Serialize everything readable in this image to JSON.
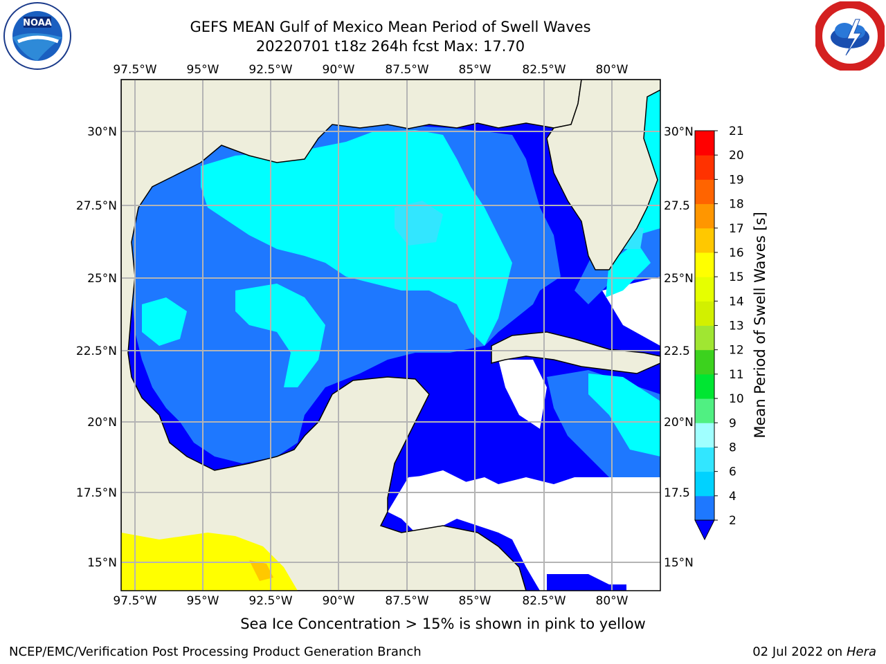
{
  "title_line1": "GEFS MEAN Gulf of Mexico Mean Period of Swell Waves",
  "title_line2": "20220701 t18z 264h fcst   Max: 17.70",
  "map": {
    "lon_ticks": [
      "97.5°W",
      "95°W",
      "92.5°W",
      "90°W",
      "87.5°W",
      "85°W",
      "82.5°W",
      "80°W"
    ],
    "lat_ticks": [
      "30°N",
      "27.5°N",
      "25°N",
      "22.5°N",
      "20°N",
      "17.5°N",
      "15°N"
    ],
    "lat_ticks_right": [
      "30°N",
      "27.5",
      "25°N",
      "22.5",
      "20°N",
      "17.5",
      "15°N"
    ],
    "land_color": "#eeeedc",
    "no_data_color": "#ffffff",
    "sea_ice_color": "#ffff00"
  },
  "colorbar": {
    "label": "Mean Period of Swell Waves [s]",
    "tick_labels": [
      "2",
      "4",
      "6",
      "8",
      "9",
      "10",
      "11",
      "12",
      "13",
      "14",
      "15",
      "16",
      "17",
      "18",
      "19",
      "20",
      "21"
    ],
    "colors": [
      "#0000ff",
      "#1e78ff",
      "#00d2ff",
      "#32e6ff",
      "#a0ffff",
      "#50f082",
      "#00e632",
      "#3cd21e",
      "#a0e632",
      "#d2f000",
      "#e6ff00",
      "#ffff00",
      "#ffc800",
      "#ff9600",
      "#ff6400",
      "#ff3200",
      "#ff0000"
    ],
    "underflow_color": "#0000ff"
  },
  "sea_ice_note": "Sea Ice Concentration > 15% is shown in pink to yellow",
  "footer_left": "NCEP/EMC/Verification Post Processing Product Generation Branch",
  "footer_right_prefix": "02 Jul 2022 on ",
  "footer_right_host": "Hera",
  "logos": {
    "left": "noaa-logo",
    "right": "nws-logo"
  }
}
